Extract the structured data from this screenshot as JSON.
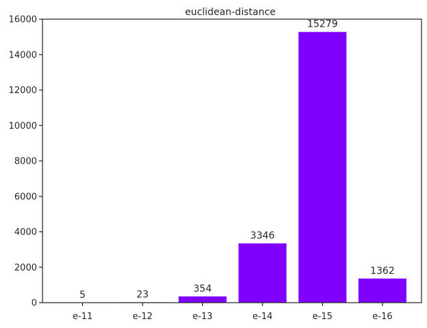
{
  "chart_data": {
    "type": "bar",
    "title": "euclidean-distance",
    "xlabel": "",
    "ylabel": "",
    "categories": [
      "e-11",
      "e-12",
      "e-13",
      "e-14",
      "e-15",
      "e-16"
    ],
    "values": [
      5,
      23,
      354,
      3346,
      15279,
      1362
    ],
    "data_labels": [
      "5",
      "23",
      "354",
      "3346",
      "15279",
      "1362"
    ],
    "ylim": [
      0,
      16000
    ],
    "yticks": [
      0,
      2000,
      4000,
      6000,
      8000,
      10000,
      12000,
      14000,
      16000
    ],
    "ytick_labels": [
      "0",
      "2000",
      "4000",
      "6000",
      "8000",
      "10000",
      "12000",
      "14000",
      "16000"
    ],
    "grid": false,
    "bar_color": "#7f00ff"
  }
}
